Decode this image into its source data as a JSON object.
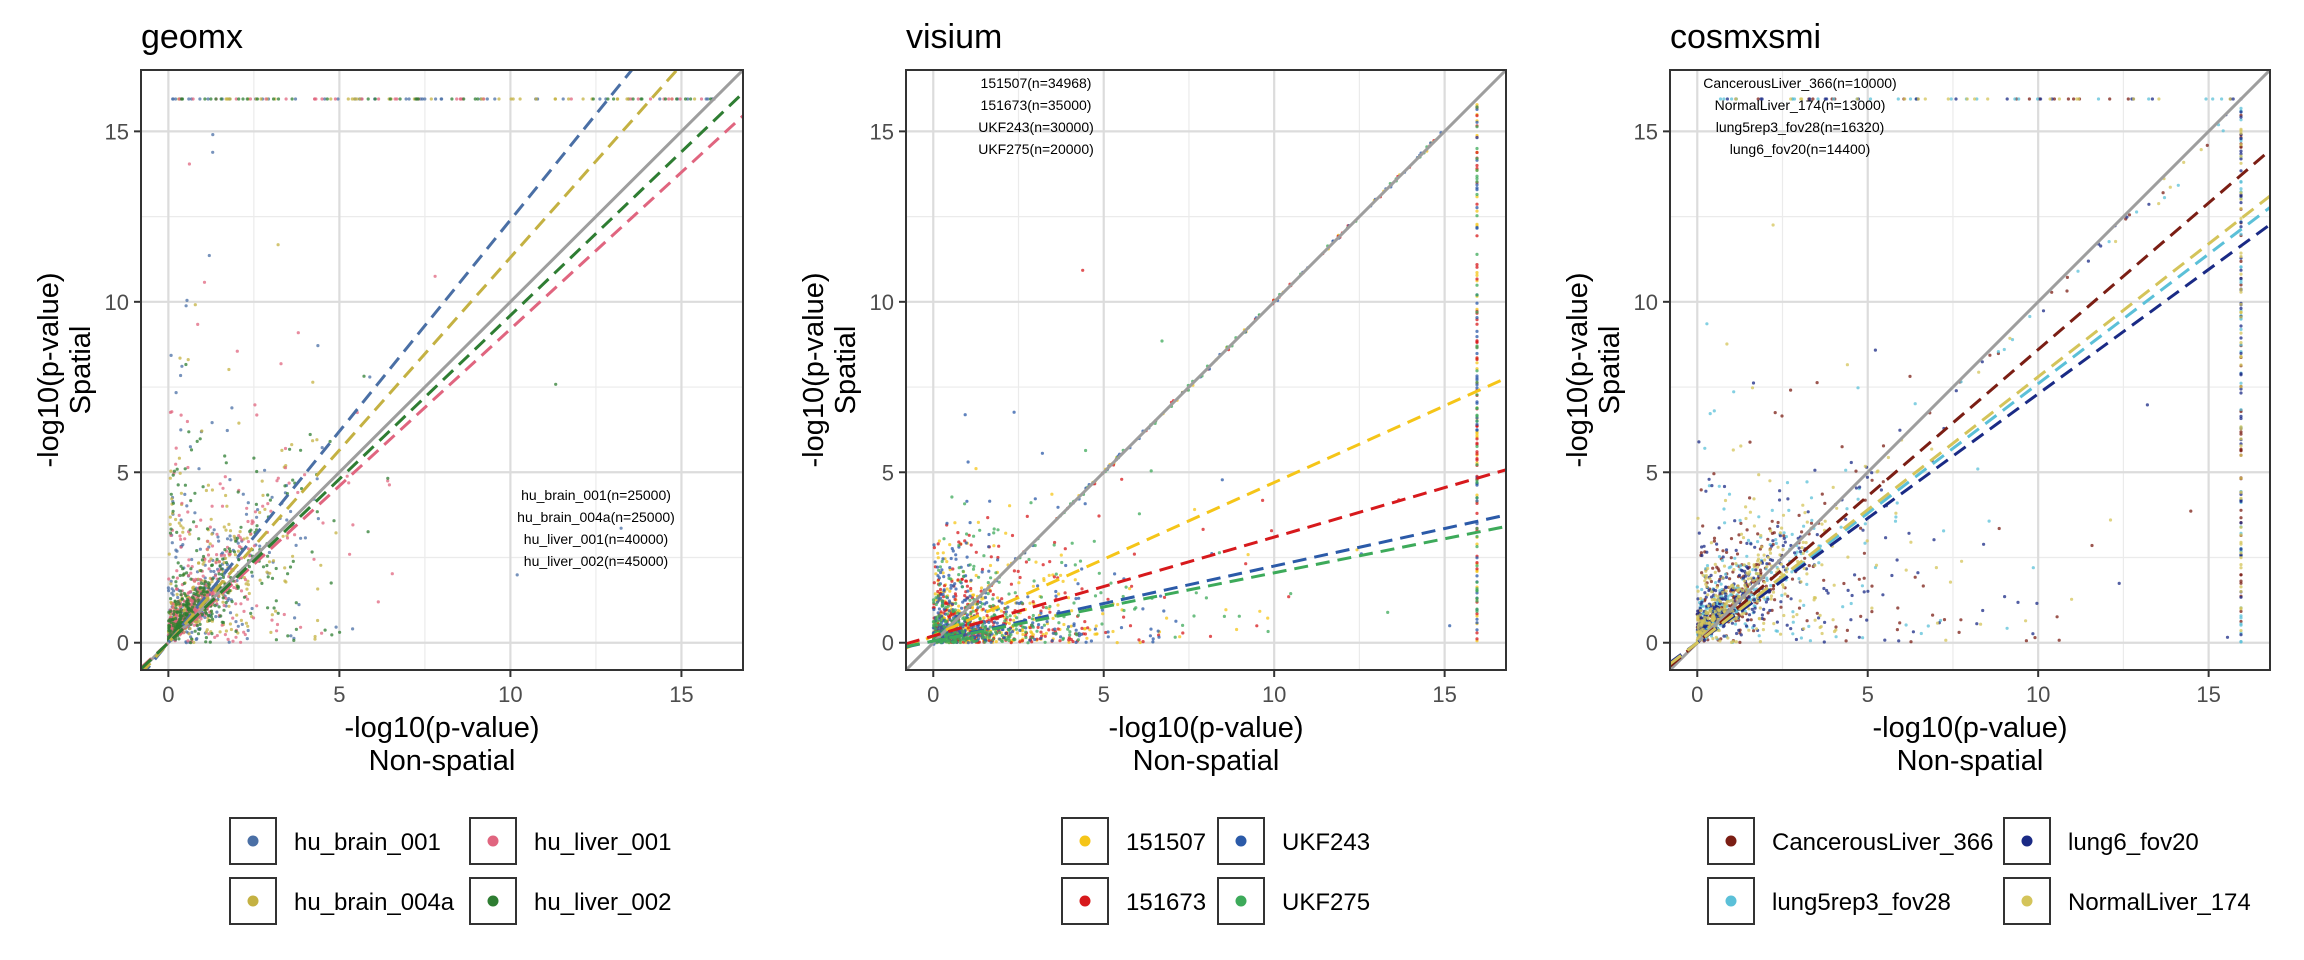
{
  "chart_data": [
    {
      "type": "scatter",
      "title": "geomx",
      "xlabel": [
        "-log10(p-value)",
        "Non-spatial"
      ],
      "ylabel": [
        "-log10(p-value)",
        "Spatial"
      ],
      "xlim": [
        -0.8,
        16.8
      ],
      "ylim": [
        -0.8,
        16.8
      ],
      "xticks": [
        0,
        5,
        10,
        15
      ],
      "yticks": [
        0,
        5,
        10,
        15
      ],
      "grid": true,
      "reference_line": "y = x",
      "cap_value": 15.95,
      "annotation": [
        "hu_brain_001(n=25000)",
        "hu_brain_004a(n=25000)",
        "hu_liver_001(n=40000)",
        "hu_liver_002(n=45000)"
      ],
      "legend_position": "bottom",
      "series": [
        {
          "name": "hu_brain_001",
          "color": "#4a6fa5",
          "fit_slope": 1.24,
          "fit_intercept": 0.0
        },
        {
          "name": "hu_brain_004a",
          "color": "#c4b142",
          "fit_slope": 1.13,
          "fit_intercept": 0.0
        },
        {
          "name": "hu_liver_001",
          "color": "#e0657f",
          "fit_slope": 0.92,
          "fit_intercept": 0.0
        },
        {
          "name": "hu_liver_002",
          "color": "#2e7d32",
          "fit_slope": 0.96,
          "fit_intercept": 0.0
        }
      ]
    },
    {
      "type": "scatter",
      "title": "visium",
      "xlabel": [
        "-log10(p-value)",
        "Non-spatial"
      ],
      "ylabel": [
        "-log10(p-value)",
        "Spatial"
      ],
      "xlim": [
        -0.8,
        16.8
      ],
      "ylim": [
        -0.8,
        16.8
      ],
      "xticks": [
        0,
        5,
        10,
        15
      ],
      "yticks": [
        0,
        5,
        10,
        15
      ],
      "grid": true,
      "reference_line": "y = x",
      "cap_value": 15.95,
      "annotation": [
        "151507(n=34968)",
        "151673(n=35000)",
        "UKF243(n=30000)",
        "UKF275(n=20000)"
      ],
      "legend_position": "bottom",
      "series": [
        {
          "name": "151507",
          "color": "#f5c518",
          "fit_slope": 0.45,
          "fit_intercept": 0.2
        },
        {
          "name": "151673",
          "color": "#d7191c",
          "fit_slope": 0.29,
          "fit_intercept": 0.2
        },
        {
          "name": "UKF243",
          "color": "#2b5aa8",
          "fit_slope": 0.22,
          "fit_intercept": 0.05
        },
        {
          "name": "UKF275",
          "color": "#3daa5a",
          "fit_slope": 0.2,
          "fit_intercept": 0.05
        }
      ]
    },
    {
      "type": "scatter",
      "title": "cosmxsmi",
      "xlabel": [
        "-log10(p-value)",
        "Non-spatial"
      ],
      "ylabel": [
        "-log10(p-value)",
        "Spatial"
      ],
      "xlim": [
        -0.8,
        16.8
      ],
      "ylim": [
        -0.8,
        16.8
      ],
      "xticks": [
        0,
        5,
        10,
        15
      ],
      "yticks": [
        0,
        5,
        10,
        15
      ],
      "grid": true,
      "reference_line": "y = x",
      "cap_value": 15.95,
      "annotation": [
        "CancerousLiver_366(n=10000)",
        "NormalLiver_174(n=13000)",
        "lung5rep3_fov28(n=16320)",
        "lung6_fov20(n=14400)"
      ],
      "legend_position": "bottom",
      "series": [
        {
          "name": "CancerousLiver_366",
          "color": "#7b1e14",
          "fit_slope": 0.86,
          "fit_intercept": 0.0
        },
        {
          "name": "lung5rep3_fov28",
          "color": "#5bc0d8",
          "fit_slope": 0.76,
          "fit_intercept": 0.0
        },
        {
          "name": "lung6_fov20",
          "color": "#1a2a85",
          "fit_slope": 0.73,
          "fit_intercept": 0.0
        },
        {
          "name": "NormalLiver_174",
          "color": "#d4c45a",
          "fit_slope": 0.78,
          "fit_intercept": 0.0
        }
      ]
    }
  ]
}
